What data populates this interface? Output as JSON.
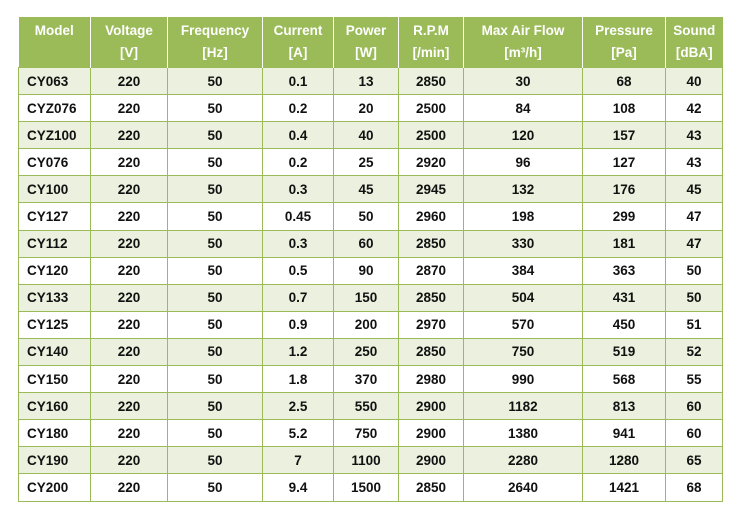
{
  "table": {
    "columns": [
      {
        "name": "Model"
      },
      {
        "name": "Voltage",
        "unit": "[V]"
      },
      {
        "name": "Frequency",
        "unit": "[Hz]"
      },
      {
        "name": "Current",
        "unit": "[A]"
      },
      {
        "name": "Power",
        "unit": "[W]"
      },
      {
        "name": "R.P.M",
        "unit": "[/min]"
      },
      {
        "name": "Max Air Flow",
        "unit": "[m³/h]"
      },
      {
        "name": "Pressure",
        "unit": "[Pa]"
      },
      {
        "name": "Sound",
        "unit": "[dBA]"
      }
    ],
    "rows": [
      [
        "CY063",
        220,
        50,
        0.1,
        13,
        2850,
        30,
        68,
        40
      ],
      [
        "CYZ076",
        220,
        50,
        0.2,
        20,
        2500,
        84,
        108,
        42
      ],
      [
        "CYZ100",
        220,
        50,
        0.4,
        40,
        2500,
        120,
        157,
        43
      ],
      [
        "CY076",
        220,
        50,
        0.2,
        25,
        2920,
        96,
        127,
        43
      ],
      [
        "CY100",
        220,
        50,
        0.3,
        45,
        2945,
        132,
        176,
        45
      ],
      [
        "CY127",
        220,
        50,
        0.45,
        50,
        2960,
        198,
        299,
        47
      ],
      [
        "CY112",
        220,
        50,
        0.3,
        60,
        2850,
        330,
        181,
        47
      ],
      [
        "CY120",
        220,
        50,
        0.5,
        90,
        2870,
        384,
        363,
        50
      ],
      [
        "CY133",
        220,
        50,
        0.7,
        150,
        2850,
        504,
        431,
        50
      ],
      [
        "CY125",
        220,
        50,
        0.9,
        200,
        2970,
        570,
        450,
        51
      ],
      [
        "CY140",
        220,
        50,
        1.2,
        250,
        2850,
        750,
        519,
        52
      ],
      [
        "CY150",
        220,
        50,
        1.8,
        370,
        2980,
        990,
        568,
        55
      ],
      [
        "CY160",
        220,
        50,
        2.5,
        550,
        2900,
        1182,
        813,
        60
      ],
      [
        "CY180",
        220,
        50,
        5.2,
        750,
        2900,
        1380,
        941,
        60
      ],
      [
        "CY190",
        220,
        50,
        7,
        1100,
        2900,
        2280,
        1280,
        65
      ],
      [
        "CY200",
        220,
        50,
        9.4,
        1500,
        2850,
        2640,
        1421,
        68
      ]
    ]
  }
}
